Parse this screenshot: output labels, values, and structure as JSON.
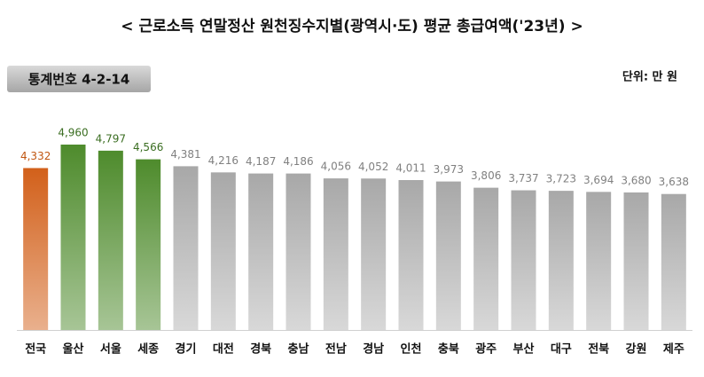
{
  "chart_data": {
    "type": "bar",
    "title": "< 근로소득  연말정산  원천징수지별(광역시·도)  평균  총급여액('23년)  >",
    "badge": "통계번호 4-2-14",
    "unit": "단위: 만 원",
    "categories": [
      "전국",
      "울산",
      "서울",
      "세종",
      "경기",
      "대전",
      "경북",
      "충남",
      "전남",
      "경남",
      "인천",
      "충북",
      "광주",
      "부산",
      "대구",
      "전북",
      "강원",
      "제주"
    ],
    "values": [
      4332,
      4960,
      4797,
      4566,
      4381,
      4216,
      4187,
      4186,
      4056,
      4052,
      4011,
      3973,
      3806,
      3737,
      3723,
      3694,
      3680,
      3638
    ],
    "value_labels": [
      "4,332",
      "4,960",
      "4,797",
      "4,566",
      "4,381",
      "4,216",
      "4,187",
      "4,186",
      "4,056",
      "4,052",
      "4,011",
      "3,973",
      "3,806",
      "3,737",
      "3,723",
      "3,694",
      "3,680",
      "3,638"
    ],
    "colors": [
      "#d2601a",
      "#4e8b2c",
      "#4e8b2c",
      "#4e8b2c",
      "#a8a8a8",
      "#a8a8a8",
      "#a8a8a8",
      "#a8a8a8",
      "#a8a8a8",
      "#a8a8a8",
      "#a8a8a8",
      "#a8a8a8",
      "#a8a8a8",
      "#a8a8a8",
      "#a8a8a8",
      "#a8a8a8",
      "#a8a8a8",
      "#a8a8a8"
    ],
    "label_colors": [
      "#c05510",
      "#3b6e22",
      "#3b6e22",
      "#3b6e22",
      "#808080",
      "#808080",
      "#808080",
      "#808080",
      "#808080",
      "#808080",
      "#808080",
      "#808080",
      "#808080",
      "#808080",
      "#808080",
      "#808080",
      "#808080",
      "#808080"
    ]
  }
}
